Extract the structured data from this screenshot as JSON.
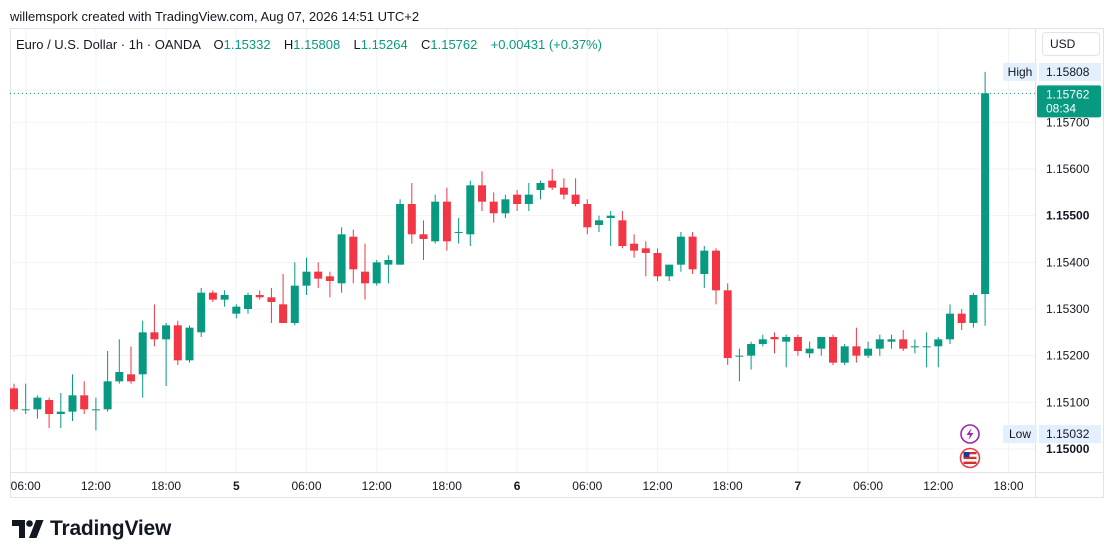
{
  "header": {
    "caption": "willemspork created with TradingView.com, Aug 07, 2026 14:51 UTC+2"
  },
  "legend": {
    "symbol": "Euro / U.S. Dollar · 1h · OANDA",
    "o_label": "O",
    "o_value": "1.15332",
    "h_label": "H",
    "h_value": "1.15808",
    "l_label": "L",
    "l_value": "1.15264",
    "c_label": "C",
    "c_value": "1.15762",
    "change": "+0.00431 (+0.37%)"
  },
  "currency_button": "USD",
  "brand": {
    "name": "TradingView"
  },
  "colors": {
    "up": "#089981",
    "down": "#f23645",
    "high_low_bg": "#e3effd"
  },
  "icons": [
    "lightning-event-icon",
    "us-flag-icon",
    "tradingview-logo-icon"
  ],
  "chart_data": {
    "type": "candlestick",
    "timeframe": "1h",
    "ylim": [
      1.14955,
      1.15845
    ],
    "y_ticks": [
      "1.15700",
      "1.15600",
      "1.15500",
      "1.15400",
      "1.15300",
      "1.15200",
      "1.15100",
      "1.15000"
    ],
    "y_ticks_bold": [
      "1.15500",
      "1.15000"
    ],
    "x_ticks": [
      {
        "bar": 1,
        "label": "06:00"
      },
      {
        "bar": 7,
        "label": "12:00"
      },
      {
        "bar": 13,
        "label": "18:00"
      },
      {
        "bar": 19,
        "label": "5",
        "bold": true
      },
      {
        "bar": 25,
        "label": "06:00"
      },
      {
        "bar": 31,
        "label": "12:00"
      },
      {
        "bar": 37,
        "label": "18:00"
      },
      {
        "bar": 43,
        "label": "6",
        "bold": true
      },
      {
        "bar": 49,
        "label": "06:00"
      },
      {
        "bar": 55,
        "label": "12:00"
      },
      {
        "bar": 61,
        "label": "18:00"
      },
      {
        "bar": 67,
        "label": "7",
        "bold": true
      },
      {
        "bar": 73,
        "label": "06:00"
      },
      {
        "bar": 79,
        "label": "12:00"
      },
      {
        "bar": 85,
        "label": "18:00"
      }
    ],
    "last_price": {
      "value": 1.15762,
      "label": "1.15762",
      "countdown": "08:34"
    },
    "high_marker": {
      "label": "High",
      "value": "1.15808"
    },
    "low_marker": {
      "label": "Low",
      "value": "1.15032"
    },
    "candles": [
      {
        "o": 1.1513,
        "h": 1.1514,
        "l": 1.1508,
        "c": 1.15085
      },
      {
        "o": 1.15085,
        "h": 1.1514,
        "l": 1.15075,
        "c": 1.15085
      },
      {
        "o": 1.15085,
        "h": 1.15115,
        "l": 1.15065,
        "c": 1.1511
      },
      {
        "o": 1.15105,
        "h": 1.1511,
        "l": 1.15045,
        "c": 1.15075
      },
      {
        "o": 1.15075,
        "h": 1.1512,
        "l": 1.15045,
        "c": 1.1508
      },
      {
        "o": 1.1508,
        "h": 1.1516,
        "l": 1.1506,
        "c": 1.15115
      },
      {
        "o": 1.15115,
        "h": 1.15145,
        "l": 1.15075,
        "c": 1.15085
      },
      {
        "o": 1.15085,
        "h": 1.1511,
        "l": 1.1504,
        "c": 1.15085
      },
      {
        "o": 1.15085,
        "h": 1.1521,
        "l": 1.1508,
        "c": 1.15145
      },
      {
        "o": 1.15145,
        "h": 1.15235,
        "l": 1.1514,
        "c": 1.15165
      },
      {
        "o": 1.1516,
        "h": 1.1522,
        "l": 1.1514,
        "c": 1.15145
      },
      {
        "o": 1.1516,
        "h": 1.15275,
        "l": 1.1511,
        "c": 1.1525
      },
      {
        "o": 1.1525,
        "h": 1.1531,
        "l": 1.1522,
        "c": 1.15235
      },
      {
        "o": 1.15235,
        "h": 1.1527,
        "l": 1.15135,
        "c": 1.15265
      },
      {
        "o": 1.15265,
        "h": 1.15275,
        "l": 1.1518,
        "c": 1.1519
      },
      {
        "o": 1.1519,
        "h": 1.15265,
        "l": 1.15185,
        "c": 1.1526
      },
      {
        "o": 1.1525,
        "h": 1.15345,
        "l": 1.1524,
        "c": 1.15335
      },
      {
        "o": 1.15335,
        "h": 1.1534,
        "l": 1.15315,
        "c": 1.1532
      },
      {
        "o": 1.1532,
        "h": 1.1534,
        "l": 1.15305,
        "c": 1.1533
      },
      {
        "o": 1.1529,
        "h": 1.1531,
        "l": 1.1528,
        "c": 1.15305
      },
      {
        "o": 1.153,
        "h": 1.15335,
        "l": 1.1529,
        "c": 1.1533
      },
      {
        "o": 1.1533,
        "h": 1.1534,
        "l": 1.1532,
        "c": 1.15325
      },
      {
        "o": 1.15325,
        "h": 1.15345,
        "l": 1.1527,
        "c": 1.15315
      },
      {
        "o": 1.1531,
        "h": 1.15375,
        "l": 1.1527,
        "c": 1.1527
      },
      {
        "o": 1.1527,
        "h": 1.154,
        "l": 1.15265,
        "c": 1.1535
      },
      {
        "o": 1.1535,
        "h": 1.1541,
        "l": 1.1533,
        "c": 1.1538
      },
      {
        "o": 1.1538,
        "h": 1.154,
        "l": 1.15345,
        "c": 1.15365
      },
      {
        "o": 1.1537,
        "h": 1.1538,
        "l": 1.15325,
        "c": 1.1536
      },
      {
        "o": 1.15355,
        "h": 1.15475,
        "l": 1.15335,
        "c": 1.1546
      },
      {
        "o": 1.15455,
        "h": 1.1547,
        "l": 1.15355,
        "c": 1.15385
      },
      {
        "o": 1.1538,
        "h": 1.1544,
        "l": 1.1532,
        "c": 1.15355
      },
      {
        "o": 1.15355,
        "h": 1.15405,
        "l": 1.1535,
        "c": 1.154
      },
      {
        "o": 1.15395,
        "h": 1.15415,
        "l": 1.15355,
        "c": 1.15405
      },
      {
        "o": 1.15395,
        "h": 1.15535,
        "l": 1.15395,
        "c": 1.15525
      },
      {
        "o": 1.15525,
        "h": 1.1557,
        "l": 1.1544,
        "c": 1.1546
      },
      {
        "o": 1.1546,
        "h": 1.1549,
        "l": 1.15405,
        "c": 1.1545
      },
      {
        "o": 1.15445,
        "h": 1.15545,
        "l": 1.1544,
        "c": 1.1553
      },
      {
        "o": 1.1553,
        "h": 1.1556,
        "l": 1.15425,
        "c": 1.15445
      },
      {
        "o": 1.15465,
        "h": 1.15495,
        "l": 1.1544,
        "c": 1.15465
      },
      {
        "o": 1.1546,
        "h": 1.15575,
        "l": 1.15435,
        "c": 1.15565
      },
      {
        "o": 1.15565,
        "h": 1.15595,
        "l": 1.1551,
        "c": 1.1553
      },
      {
        "o": 1.1553,
        "h": 1.1555,
        "l": 1.15485,
        "c": 1.15505
      },
      {
        "o": 1.15505,
        "h": 1.15545,
        "l": 1.15495,
        "c": 1.15535
      },
      {
        "o": 1.15545,
        "h": 1.15555,
        "l": 1.1551,
        "c": 1.15525
      },
      {
        "o": 1.15525,
        "h": 1.1557,
        "l": 1.1551,
        "c": 1.15545
      },
      {
        "o": 1.15555,
        "h": 1.15575,
        "l": 1.15535,
        "c": 1.1557
      },
      {
        "o": 1.15575,
        "h": 1.156,
        "l": 1.15555,
        "c": 1.1556
      },
      {
        "o": 1.1556,
        "h": 1.1558,
        "l": 1.15535,
        "c": 1.15545
      },
      {
        "o": 1.15545,
        "h": 1.1558,
        "l": 1.1552,
        "c": 1.15525
      },
      {
        "o": 1.15525,
        "h": 1.15535,
        "l": 1.1546,
        "c": 1.15475
      },
      {
        "o": 1.1548,
        "h": 1.155,
        "l": 1.15465,
        "c": 1.1549
      },
      {
        "o": 1.15495,
        "h": 1.1551,
        "l": 1.15435,
        "c": 1.155
      },
      {
        "o": 1.1549,
        "h": 1.1551,
        "l": 1.1543,
        "c": 1.15435
      },
      {
        "o": 1.1544,
        "h": 1.1546,
        "l": 1.1541,
        "c": 1.15425
      },
      {
        "o": 1.1543,
        "h": 1.15445,
        "l": 1.1537,
        "c": 1.1542
      },
      {
        "o": 1.1542,
        "h": 1.1543,
        "l": 1.1536,
        "c": 1.1537
      },
      {
        "o": 1.1537,
        "h": 1.15395,
        "l": 1.1536,
        "c": 1.15395
      },
      {
        "o": 1.15395,
        "h": 1.15465,
        "l": 1.1538,
        "c": 1.15455
      },
      {
        "o": 1.15455,
        "h": 1.15465,
        "l": 1.15375,
        "c": 1.15385
      },
      {
        "o": 1.15375,
        "h": 1.15435,
        "l": 1.15345,
        "c": 1.15425
      },
      {
        "o": 1.15425,
        "h": 1.1543,
        "l": 1.1531,
        "c": 1.1534
      },
      {
        "o": 1.1534,
        "h": 1.15355,
        "l": 1.1518,
        "c": 1.15195
      },
      {
        "o": 1.152,
        "h": 1.15215,
        "l": 1.15145,
        "c": 1.152
      },
      {
        "o": 1.152,
        "h": 1.1523,
        "l": 1.1517,
        "c": 1.15225
      },
      {
        "o": 1.15225,
        "h": 1.15245,
        "l": 1.1522,
        "c": 1.15235
      },
      {
        "o": 1.1524,
        "h": 1.1525,
        "l": 1.15205,
        "c": 1.15235
      },
      {
        "o": 1.1523,
        "h": 1.15245,
        "l": 1.15175,
        "c": 1.1524
      },
      {
        "o": 1.1524,
        "h": 1.15245,
        "l": 1.152,
        "c": 1.1521
      },
      {
        "o": 1.15205,
        "h": 1.1523,
        "l": 1.15195,
        "c": 1.15215
      },
      {
        "o": 1.15215,
        "h": 1.1524,
        "l": 1.152,
        "c": 1.1524
      },
      {
        "o": 1.1524,
        "h": 1.15245,
        "l": 1.1518,
        "c": 1.15185
      },
      {
        "o": 1.15185,
        "h": 1.15225,
        "l": 1.1518,
        "c": 1.1522
      },
      {
        "o": 1.1522,
        "h": 1.1526,
        "l": 1.15185,
        "c": 1.152
      },
      {
        "o": 1.152,
        "h": 1.1523,
        "l": 1.15195,
        "c": 1.15215
      },
      {
        "o": 1.15215,
        "h": 1.15245,
        "l": 1.152,
        "c": 1.15235
      },
      {
        "o": 1.1523,
        "h": 1.15245,
        "l": 1.15215,
        "c": 1.15235
      },
      {
        "o": 1.15235,
        "h": 1.15255,
        "l": 1.1521,
        "c": 1.15215
      },
      {
        "o": 1.1522,
        "h": 1.15235,
        "l": 1.15205,
        "c": 1.1522
      },
      {
        "o": 1.1522,
        "h": 1.1525,
        "l": 1.15175,
        "c": 1.1522
      },
      {
        "o": 1.1522,
        "h": 1.1524,
        "l": 1.15175,
        "c": 1.15235
      },
      {
        "o": 1.15235,
        "h": 1.1531,
        "l": 1.15225,
        "c": 1.1529
      },
      {
        "o": 1.1529,
        "h": 1.153,
        "l": 1.15255,
        "c": 1.1527
      },
      {
        "o": 1.1527,
        "h": 1.15335,
        "l": 1.1526,
        "c": 1.1533
      },
      {
        "o": 1.15332,
        "h": 1.15808,
        "l": 1.15264,
        "c": 1.15762
      }
    ]
  }
}
